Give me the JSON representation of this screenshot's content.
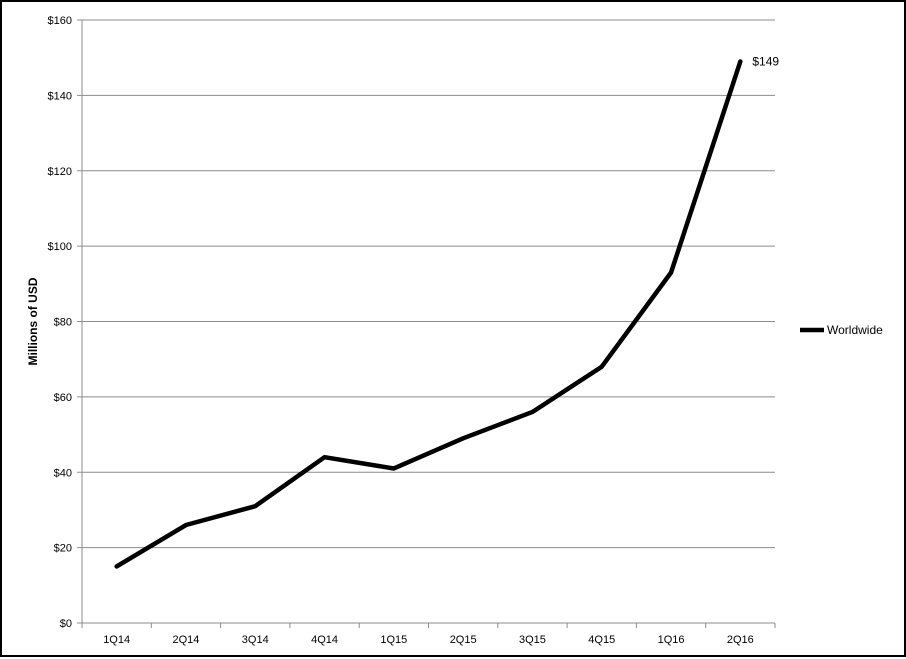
{
  "chart_data": {
    "type": "line",
    "title": "",
    "xlabel": "",
    "ylabel": "Millions of USD",
    "categories": [
      "1Q14",
      "2Q14",
      "3Q14",
      "4Q14",
      "1Q15",
      "2Q15",
      "3Q15",
      "4Q15",
      "1Q16",
      "2Q16"
    ],
    "series": [
      {
        "name": "Worldwide",
        "values": [
          15,
          26,
          31,
          44,
          41,
          49,
          56,
          68,
          93,
          149
        ],
        "color": "#000000"
      }
    ],
    "ylim": [
      0,
      160
    ],
    "yticks": [
      0,
      20,
      40,
      60,
      80,
      100,
      120,
      140,
      160
    ],
    "ytick_labels": [
      "$0",
      "$20",
      "$40",
      "$60",
      "$80",
      "$100",
      "$120",
      "$140",
      "$160"
    ],
    "annotations": [
      {
        "category": "2Q16",
        "value": 149,
        "text": "$149"
      }
    ],
    "grid": true,
    "legend_position": "right"
  }
}
